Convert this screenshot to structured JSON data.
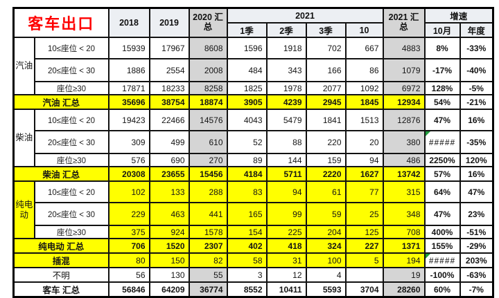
{
  "title": "客车出口",
  "colors": {
    "highlight_yellow": "#FFFF00",
    "summary_column_grey": "#D5D5D5",
    "title_red": "#FE0000",
    "header_tint": "#ECEFF3",
    "error_triangle_green": "#1F9D3C"
  },
  "table": {
    "col_headers": {
      "y2018": "2018",
      "y2019": "2019",
      "sum2020": "2020 汇总",
      "y2021": "2021",
      "q1": "1季",
      "q2": "2季",
      "q3": "3季",
      "m10": "10",
      "sum2021": "2021 汇总",
      "growth": "增速",
      "g_oct": "10月",
      "g_year": "年度"
    },
    "rows": [
      {
        "fuel": "汽油",
        "label": "10≤座位 < 20",
        "labelSpan": 1,
        "values": [
          "15939",
          "17967",
          "8608",
          "1596",
          "1918",
          "702",
          "667",
          "4883",
          "8%",
          "-33%"
        ]
      },
      {
        "label": "20≤座位 < 30",
        "labelSpan": 1,
        "values": [
          "1886",
          "2554",
          "2008",
          "484",
          "343",
          "166",
          "86",
          "1079",
          "-17%",
          "-40%"
        ]
      },
      {
        "label": "座位≥30",
        "labelSpan": 1,
        "values": [
          "17871",
          "18233",
          "8258",
          "1825",
          "1978",
          "2077",
          "1092",
          "6972",
          "128%",
          "-5%"
        ]
      },
      {
        "label": "汽油 汇总",
        "labelSpan": 2,
        "labelBg": "yellow",
        "labelBold": true,
        "valuesBg": "yellow",
        "valuesBold": true,
        "values": [
          "35696",
          "38754",
          "18874",
          "3905",
          "4239",
          "2945",
          "1845",
          "12934",
          "54%",
          "-21%"
        ]
      },
      {
        "fuel": "柴油",
        "label": "10≤座位 < 20",
        "labelSpan": 1,
        "values": [
          "19423",
          "22466",
          "14576",
          "4043",
          "5479",
          "1841",
          "1513",
          "12876",
          "47%",
          "16%"
        ]
      },
      {
        "label": "20≤座位 < 30",
        "labelSpan": 1,
        "tri": [
          8
        ],
        "values": [
          "309",
          "499",
          "610",
          "52",
          "88",
          "220",
          "20",
          "380",
          "#####",
          "-35%"
        ]
      },
      {
        "label": "座位≥30",
        "labelSpan": 1,
        "values": [
          "576",
          "690",
          "270",
          "89",
          "144",
          "159",
          "94",
          "486",
          "2250%",
          "120%"
        ]
      },
      {
        "label": "柴油 汇总",
        "labelSpan": 2,
        "labelBg": "yellow",
        "labelBold": true,
        "valuesBg": "yellow",
        "valuesBold": true,
        "values": [
          "20308",
          "23655",
          "15456",
          "4184",
          "5711",
          "2220",
          "1627",
          "13742",
          "57%",
          "16%"
        ]
      },
      {
        "fuel": "纯电动",
        "fuelBg": "yellow",
        "label": "10≤座位 < 20",
        "labelSpan": 1,
        "valuesBg": "yellow",
        "values": [
          "102",
          "133",
          "288",
          "83",
          "94",
          "61",
          "77",
          "315",
          "64%",
          "47%"
        ]
      },
      {
        "label": "20≤座位 < 30",
        "labelSpan": 1,
        "valuesBg": "yellow",
        "values": [
          "229",
          "463",
          "441",
          "165",
          "99",
          "59",
          "25",
          "348",
          "47%",
          "23%"
        ]
      },
      {
        "label": "座位≥30",
        "labelSpan": 1,
        "valuesBg": "yellow",
        "values": [
          "375",
          "924",
          "1578",
          "154",
          "225",
          "204",
          "125",
          "708",
          "400%",
          "-51%"
        ]
      },
      {
        "label": "纯电动 汇总",
        "labelSpan": 2,
        "labelBg": "yellow",
        "labelBold": true,
        "valuesBg": "yellow",
        "valuesBold": true,
        "values": [
          "706",
          "1520",
          "2307",
          "402",
          "418",
          "324",
          "227",
          "1371",
          "155%",
          "-29%"
        ]
      },
      {
        "label": "插混",
        "labelSpan": 2,
        "labelBg": "yellow",
        "labelBold": true,
        "valuesBg": "yellow",
        "tri": [
          8
        ],
        "values": [
          "80",
          "150",
          "82",
          "58",
          "31",
          "100",
          "5",
          "194",
          "#####",
          "203%"
        ]
      },
      {
        "label": "不明",
        "labelSpan": 2,
        "values": [
          "56",
          "130",
          "55",
          "3",
          "12",
          "4",
          "",
          "19",
          "-100%",
          "-63%"
        ]
      },
      {
        "label": "客车 汇总",
        "labelSpan": 2,
        "labelBold": true,
        "valuesBold": true,
        "values": [
          "56846",
          "64209",
          "36774",
          "8552",
          "10411",
          "5593",
          "3704",
          "28260",
          "60%",
          "-7%"
        ]
      }
    ]
  }
}
